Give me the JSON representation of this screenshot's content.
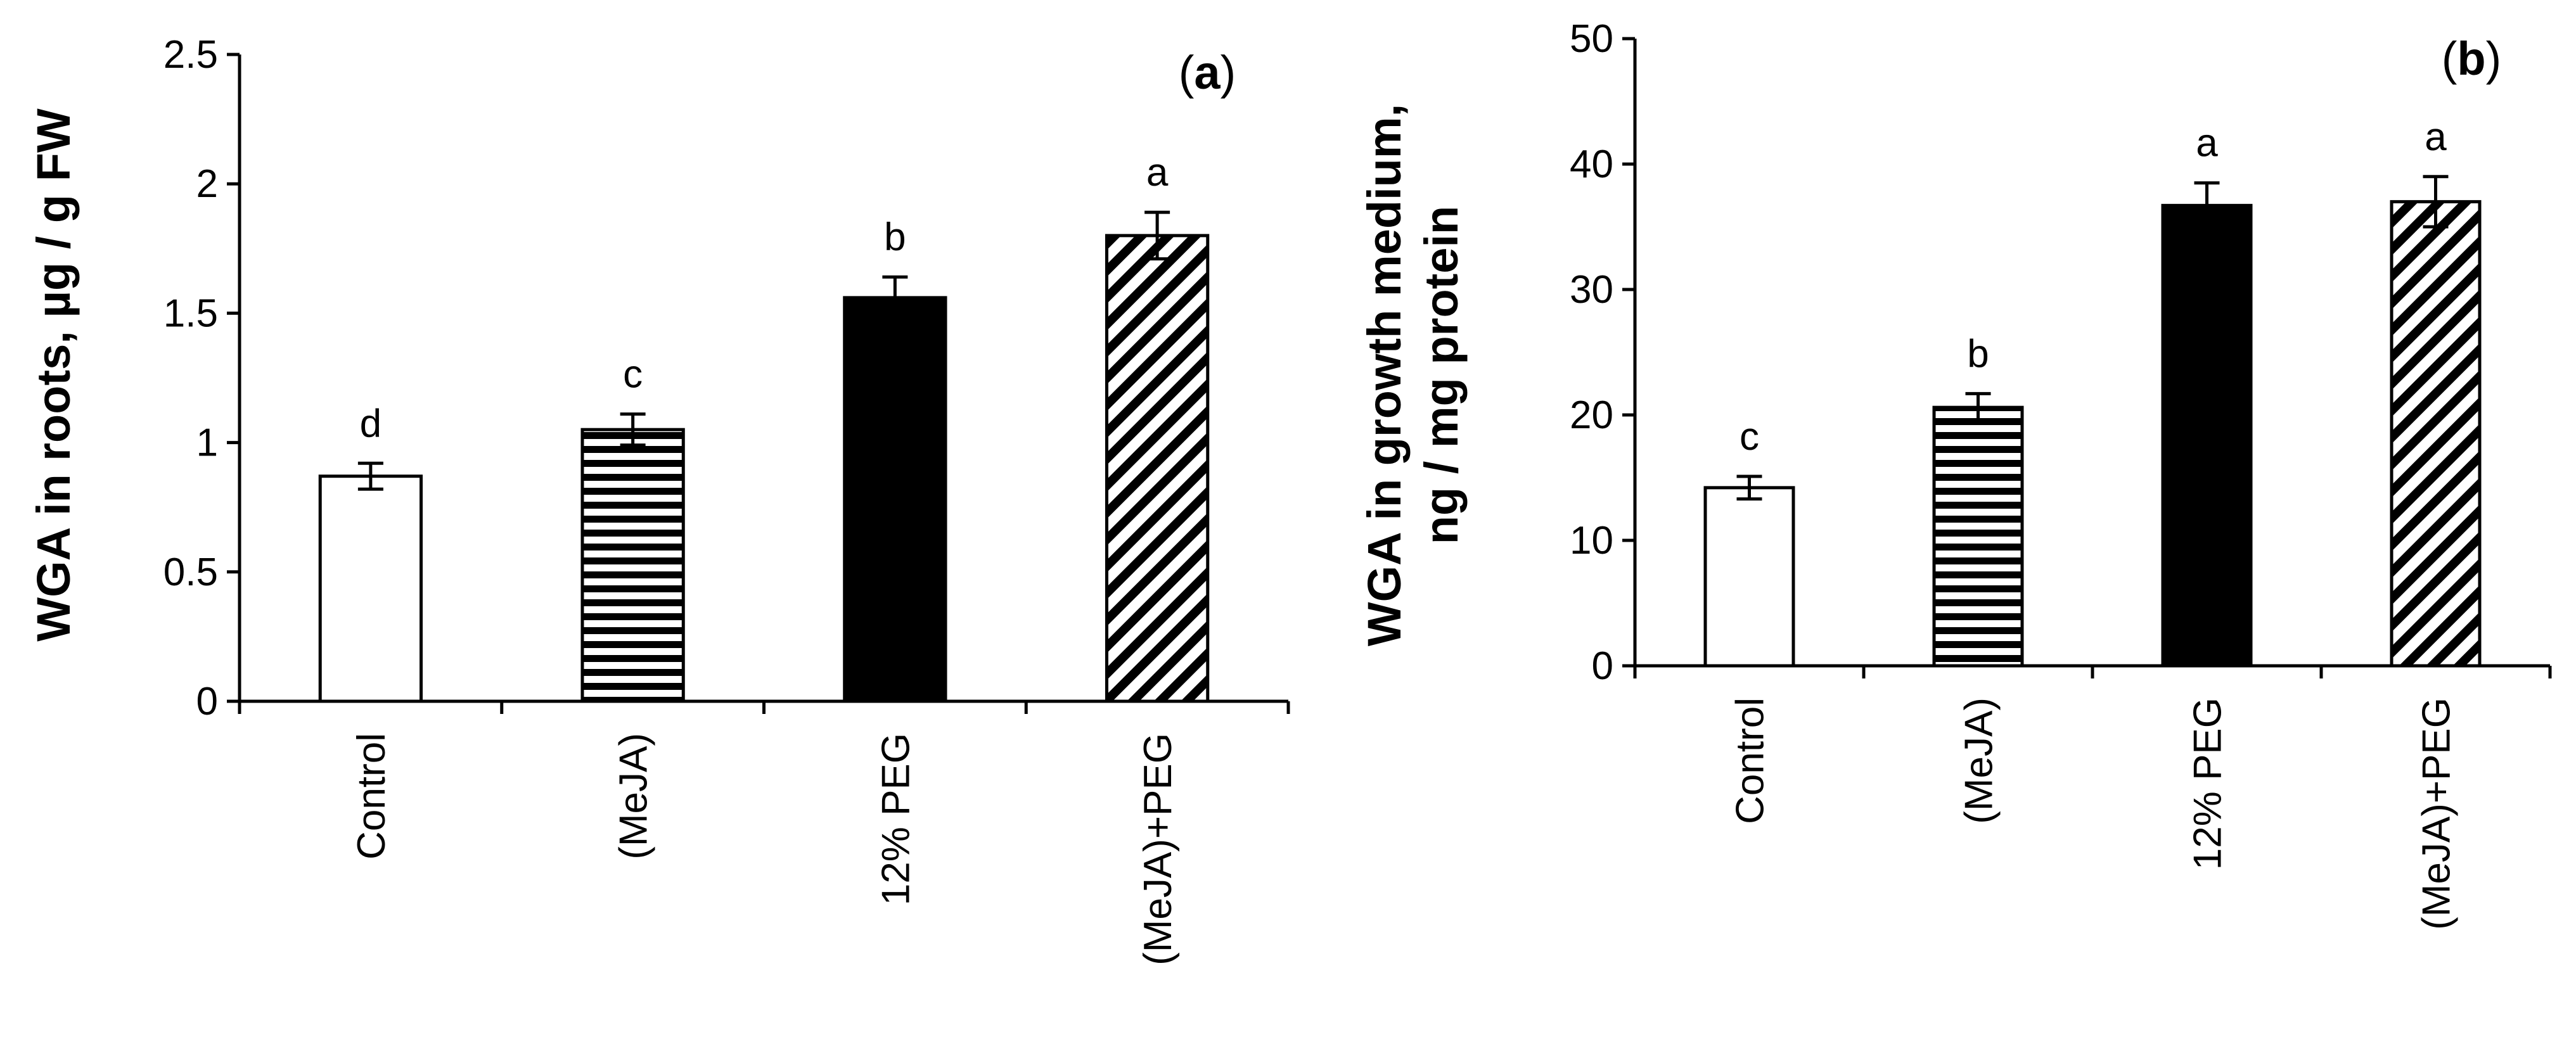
{
  "chart_data": [
    {
      "type": "bar",
      "panel_label": "a",
      "ylabel": "WGA in roots,  µg / g FW",
      "ylim": [
        0,
        2.5
      ],
      "yticks": [
        "0",
        "0.5",
        "1",
        "1.5",
        "2",
        "2.5"
      ],
      "categories": [
        "Control",
        "(MeJA)",
        "12% PEG",
        "(MeJA)+PEG"
      ],
      "values": [
        0.87,
        1.05,
        1.56,
        1.8
      ],
      "errors": [
        0.05,
        0.06,
        0.08,
        0.09
      ],
      "significance": [
        "d",
        "c",
        "b",
        "a"
      ],
      "fills": [
        "white",
        "horizontal-stripes",
        "black",
        "diagonal-stripes"
      ],
      "grid": false
    },
    {
      "type": "bar",
      "panel_label": "b",
      "ylabel": [
        "WGA in growth medium,",
        "ng / mg protein"
      ],
      "ylim": [
        0,
        50
      ],
      "yticks": [
        "0",
        "10",
        "20",
        "30",
        "40",
        "50"
      ],
      "categories": [
        "Control",
        "(MeJA)",
        "12% PEG",
        "(MeJA)+PEG"
      ],
      "values": [
        14.2,
        20.6,
        36.7,
        37.0
      ],
      "errors": [
        0.9,
        1.1,
        1.8,
        2.0
      ],
      "significance": [
        "c",
        "b",
        "a",
        "a"
      ],
      "fills": [
        "white",
        "horizontal-stripes",
        "black",
        "diagonal-stripes"
      ],
      "grid": false
    }
  ]
}
